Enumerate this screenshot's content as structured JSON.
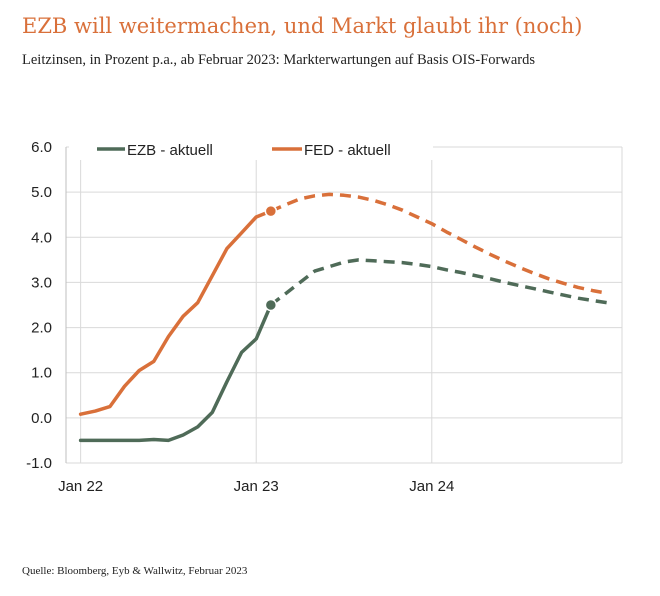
{
  "header": {
    "title": "EZB will weitermachen, und Markt glaubt ihr (noch)",
    "subtitle": "Leitzinsen, in Prozent p.a., ab Februar 2023: Markterwartungen auf Basis OIS-Forwards"
  },
  "footer": {
    "source": "Quelle: Bloomberg, Eyb & Wallwitz, Februar 2023"
  },
  "colors": {
    "ezb": "#4f6b58",
    "fed": "#d9703a",
    "title": "#d9703a",
    "grid": "#d9d9d9",
    "axis": "#bfbfbf"
  },
  "chart_data": {
    "type": "line",
    "title": "",
    "xlabel": "",
    "ylabel": "",
    "ylim": [
      -1.0,
      6.0
    ],
    "y_ticks": [
      "-1.0",
      "0.0",
      "1.0",
      "2.0",
      "3.0",
      "4.0",
      "5.0",
      "6.0"
    ],
    "x_ticks": [
      "Jan 22",
      "Jan 23",
      "Jan 24"
    ],
    "grid": "vertical and horizontal",
    "legend_position": "top-left",
    "forecast_start": "2023-02",
    "series": [
      {
        "name": "EZB - aktuell",
        "color": "#4f6b58",
        "points": [
          [
            "2022-01",
            -0.5
          ],
          [
            "2022-02",
            -0.5
          ],
          [
            "2022-03",
            -0.5
          ],
          [
            "2022-04",
            -0.5
          ],
          [
            "2022-05",
            -0.5
          ],
          [
            "2022-06",
            -0.48
          ],
          [
            "2022-07",
            -0.5
          ],
          [
            "2022-08",
            -0.38
          ],
          [
            "2022-09",
            -0.2
          ],
          [
            "2022-10",
            0.12
          ],
          [
            "2022-11",
            0.8
          ],
          [
            "2022-12",
            1.45
          ],
          [
            "2023-01",
            1.75
          ],
          [
            "2023-02",
            2.5
          ],
          [
            "2023-03",
            2.75
          ],
          [
            "2023-04",
            3.0
          ],
          [
            "2023-05",
            3.25
          ],
          [
            "2023-06",
            3.35
          ],
          [
            "2023-07",
            3.45
          ],
          [
            "2023-08",
            3.5
          ],
          [
            "2023-09",
            3.48
          ],
          [
            "2023-10",
            3.46
          ],
          [
            "2023-11",
            3.44
          ],
          [
            "2023-12",
            3.4
          ],
          [
            "2024-01",
            3.35
          ],
          [
            "2024-02",
            3.28
          ],
          [
            "2024-03",
            3.22
          ],
          [
            "2024-04",
            3.15
          ],
          [
            "2024-05",
            3.08
          ],
          [
            "2024-06",
            3.0
          ],
          [
            "2024-07",
            2.93
          ],
          [
            "2024-08",
            2.86
          ],
          [
            "2024-09",
            2.79
          ],
          [
            "2024-10",
            2.72
          ],
          [
            "2024-11",
            2.65
          ],
          [
            "2024-12",
            2.6
          ],
          [
            "2025-01",
            2.55
          ]
        ]
      },
      {
        "name": "FED - aktuell",
        "color": "#d9703a",
        "points": [
          [
            "2022-01",
            0.08
          ],
          [
            "2022-02",
            0.15
          ],
          [
            "2022-03",
            0.25
          ],
          [
            "2022-04",
            0.7
          ],
          [
            "2022-05",
            1.05
          ],
          [
            "2022-06",
            1.25
          ],
          [
            "2022-07",
            1.8
          ],
          [
            "2022-08",
            2.25
          ],
          [
            "2022-09",
            2.55
          ],
          [
            "2022-10",
            3.15
          ],
          [
            "2022-11",
            3.75
          ],
          [
            "2022-12",
            4.1
          ],
          [
            "2023-01",
            4.45
          ],
          [
            "2023-02",
            4.58
          ],
          [
            "2023-03",
            4.72
          ],
          [
            "2023-04",
            4.85
          ],
          [
            "2023-05",
            4.92
          ],
          [
            "2023-06",
            4.95
          ],
          [
            "2023-07",
            4.93
          ],
          [
            "2023-08",
            4.89
          ],
          [
            "2023-09",
            4.82
          ],
          [
            "2023-10",
            4.72
          ],
          [
            "2023-11",
            4.6
          ],
          [
            "2023-12",
            4.45
          ],
          [
            "2024-01",
            4.3
          ],
          [
            "2024-02",
            4.12
          ],
          [
            "2024-03",
            3.95
          ],
          [
            "2024-04",
            3.78
          ],
          [
            "2024-05",
            3.62
          ],
          [
            "2024-06",
            3.47
          ],
          [
            "2024-07",
            3.33
          ],
          [
            "2024-08",
            3.2
          ],
          [
            "2024-09",
            3.08
          ],
          [
            "2024-10",
            2.98
          ],
          [
            "2024-11",
            2.89
          ],
          [
            "2024-12",
            2.82
          ],
          [
            "2025-01",
            2.76
          ]
        ]
      }
    ],
    "markers": [
      {
        "series": "EZB - aktuell",
        "x": "2023-02",
        "y": 2.5
      },
      {
        "series": "FED - aktuell",
        "x": "2023-02",
        "y": 4.58
      }
    ]
  }
}
